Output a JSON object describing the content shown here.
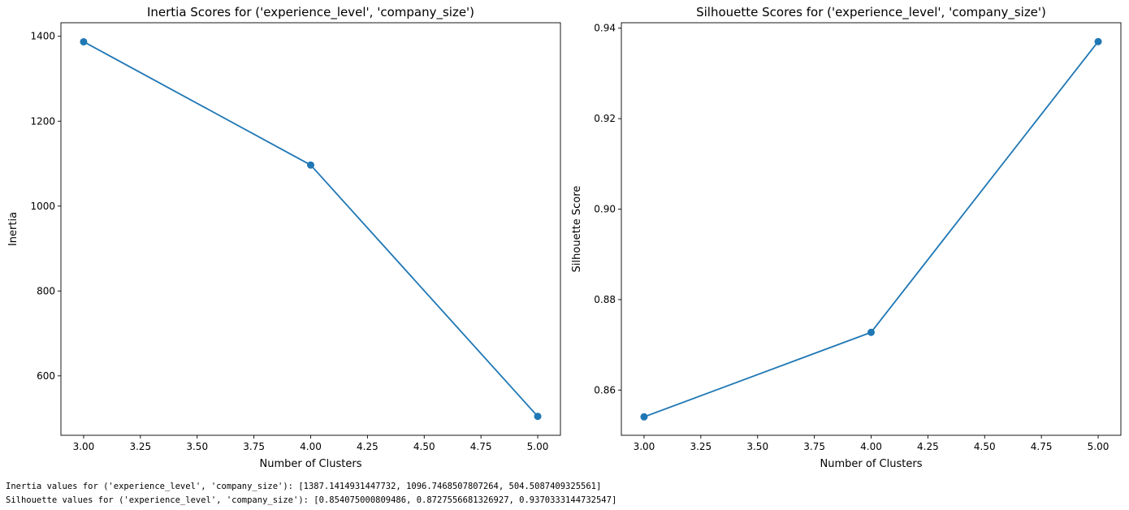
{
  "chart_data": [
    {
      "type": "line",
      "title": "Inertia Scores for ('experience_level', 'company_size')",
      "xlabel": "Number of Clusters",
      "ylabel": "Inertia",
      "x": [
        3,
        4,
        5
      ],
      "series": [
        {
          "values": [
            1387.1414931447732,
            1096.7468507807264,
            504.5087409325561
          ]
        }
      ],
      "xlim": [
        2.9,
        5.1
      ],
      "ylim": [
        460,
        1432
      ],
      "xticks": [
        3.0,
        3.25,
        3.5,
        3.75,
        4.0,
        4.25,
        4.5,
        4.75,
        5.0
      ],
      "xtick_labels": [
        "3.00",
        "3.25",
        "3.50",
        "3.75",
        "4.00",
        "4.25",
        "4.50",
        "4.75",
        "5.00"
      ],
      "yticks": [
        600,
        800,
        1000,
        1200,
        1400
      ],
      "ytick_labels": [
        "600",
        "800",
        "1000",
        "1200",
        "1400"
      ],
      "grid": false,
      "marker": "circle",
      "color": "#1f77b4"
    },
    {
      "type": "line",
      "title": "Silhouette Scores for ('experience_level', 'company_size')",
      "xlabel": "Number of Clusters",
      "ylabel": "Silhouette Score",
      "x": [
        3,
        4,
        5
      ],
      "series": [
        {
          "values": [
            0.854075000809486,
            0.8727556681326927,
            0.9370333144732547
          ]
        }
      ],
      "xlim": [
        2.9,
        5.1
      ],
      "ylim": [
        0.85,
        0.9412
      ],
      "xticks": [
        3.0,
        3.25,
        3.5,
        3.75,
        4.0,
        4.25,
        4.5,
        4.75,
        5.0
      ],
      "xtick_labels": [
        "3.00",
        "3.25",
        "3.50",
        "3.75",
        "4.00",
        "4.25",
        "4.50",
        "4.75",
        "5.00"
      ],
      "yticks": [
        0.86,
        0.88,
        0.9,
        0.92,
        0.94
      ],
      "ytick_labels": [
        "0.86",
        "0.88",
        "0.90",
        "0.92",
        "0.94"
      ],
      "grid": false,
      "marker": "circle",
      "color": "#1f77b4"
    }
  ],
  "output": {
    "inertia_line": "Inertia values for ('experience_level', 'company_size'): [1387.1414931447732, 1096.7468507807264, 504.5087409325561]",
    "silhouette_line": "Silhouette values for ('experience_level', 'company_size'): [0.854075000809486, 0.8727556681326927, 0.9370333144732547]"
  }
}
